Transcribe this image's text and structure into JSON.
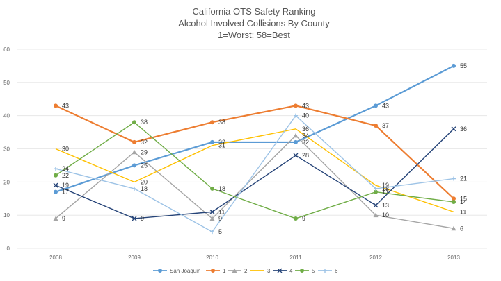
{
  "chart_data": {
    "type": "line",
    "title_lines": [
      "California OTS Safety Ranking",
      "Alcohol Involved Collisions By County",
      "1=Worst; 58=Best"
    ],
    "xlabel": "",
    "ylabel": "",
    "ylim": [
      0,
      60
    ],
    "yticks": [
      "0",
      "10",
      "20",
      "30",
      "40",
      "50",
      "60"
    ],
    "categories": [
      "2008",
      "2009",
      "2010",
      "2011",
      "2012",
      "2013"
    ],
    "grid": true,
    "legend_position": "bottom",
    "series": [
      {
        "name": "San Joaquin",
        "color": "#5B9BD5",
        "marker": "circle",
        "values": [
          17,
          25,
          32,
          32,
          43,
          55
        ],
        "labels": [
          "17",
          "25",
          "32",
          "32",
          "43",
          "55"
        ]
      },
      {
        "name": "1",
        "color": "#ED7D31",
        "marker": "circle",
        "values": [
          43,
          32,
          38,
          43,
          37,
          15
        ],
        "labels": [
          "43",
          "32",
          "38",
          "43",
          "37",
          "15"
        ]
      },
      {
        "name": "2",
        "color": "#A5A5A5",
        "marker": "triangle",
        "values": [
          9,
          29,
          9,
          34,
          10,
          6
        ],
        "labels": [
          "9",
          "29",
          "9",
          "34",
          "10",
          "6"
        ]
      },
      {
        "name": "3",
        "color": "#FFC000",
        "marker": "none",
        "values": [
          30,
          20,
          31,
          36,
          19,
          11
        ],
        "labels": [
          "30",
          "20",
          "31",
          "36",
          "19",
          "11"
        ]
      },
      {
        "name": "4",
        "color": "#264478",
        "marker": "x",
        "values": [
          19,
          9,
          11,
          28,
          13,
          36
        ],
        "labels": [
          "19",
          "9",
          "11",
          "28",
          "13",
          "36"
        ]
      },
      {
        "name": "5",
        "color": "#70AD47",
        "marker": "circle",
        "values": [
          22,
          38,
          18,
          9,
          17,
          14
        ],
        "labels": [
          "22",
          "38",
          "18",
          "9",
          "17",
          "14"
        ]
      },
      {
        "name": "6",
        "color": "#9DC3E6",
        "marker": "plus",
        "values": [
          24,
          18,
          5,
          40,
          18,
          21
        ],
        "labels": [
          "24",
          "18",
          "5",
          "40",
          "18",
          "21"
        ]
      }
    ]
  }
}
